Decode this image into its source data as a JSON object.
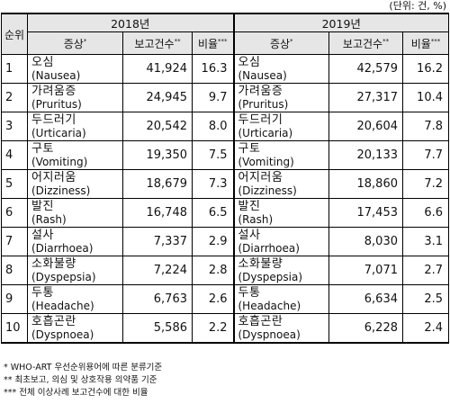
{
  "unit_note": "(단위: 건, %)",
  "headers": {
    "rank": "순위",
    "year_2018": "2018년",
    "year_2019": "2019년",
    "symptom": "증상",
    "count": "보고건수",
    "ratio": "비율",
    "mark_symptom": "*",
    "mark_count": "**",
    "mark_ratio": "***"
  },
  "rows": [
    {
      "rank": "1",
      "y2018": {
        "ko": "오심",
        "en": "(Nausea)",
        "count": "41,924",
        "ratio": "16.3"
      },
      "y2019": {
        "ko": "오심",
        "en": "(Nausea)",
        "count": "42,579",
        "ratio": "16.2"
      }
    },
    {
      "rank": "2",
      "y2018": {
        "ko": "가려움증",
        "en": "(Pruritus)",
        "count": "24,945",
        "ratio": "9.7"
      },
      "y2019": {
        "ko": "가려움증",
        "en": "(Pruritus)",
        "count": "27,317",
        "ratio": "10.4"
      }
    },
    {
      "rank": "3",
      "y2018": {
        "ko": "두드러기",
        "en": "(Urticaria)",
        "count": "20,542",
        "ratio": "8.0"
      },
      "y2019": {
        "ko": "두드러기",
        "en": "(Urticaria)",
        "count": "20,604",
        "ratio": "7.8"
      }
    },
    {
      "rank": "4",
      "y2018": {
        "ko": "구토",
        "en": "(Vomiting)",
        "count": "19,350",
        "ratio": "7.5"
      },
      "y2019": {
        "ko": "구토",
        "en": "(Vomiting)",
        "count": "20,133",
        "ratio": "7.7"
      }
    },
    {
      "rank": "5",
      "y2018": {
        "ko": "어지러움",
        "en": "(Dizziness)",
        "count": "18,679",
        "ratio": "7.3"
      },
      "y2019": {
        "ko": "어지러움",
        "en": "(Dizziness)",
        "count": "18,860",
        "ratio": "7.2"
      }
    },
    {
      "rank": "6",
      "y2018": {
        "ko": "발진",
        "en": "(Rash)",
        "count": "16,748",
        "ratio": "6.5"
      },
      "y2019": {
        "ko": "발진",
        "en": "(Rash)",
        "count": "17,453",
        "ratio": "6.6"
      }
    },
    {
      "rank": "7",
      "y2018": {
        "ko": "설사",
        "en": "(Diarrhoea)",
        "count": "7,337",
        "ratio": "2.9"
      },
      "y2019": {
        "ko": "설사",
        "en": "(Diarrhoea)",
        "count": "8,030",
        "ratio": "3.1"
      }
    },
    {
      "rank": "8",
      "y2018": {
        "ko": "소화불량",
        "en": "(Dyspepsia)",
        "count": "7,224",
        "ratio": "2.8"
      },
      "y2019": {
        "ko": "소화불량",
        "en": "(Dyspepsia)",
        "count": "7,071",
        "ratio": "2.7"
      }
    },
    {
      "rank": "9",
      "y2018": {
        "ko": "두통",
        "en": "(Headache)",
        "count": "6,763",
        "ratio": "2.6"
      },
      "y2019": {
        "ko": "두통",
        "en": "(Headache)",
        "count": "6,634",
        "ratio": "2.5"
      }
    },
    {
      "rank": "10",
      "y2018": {
        "ko": "호흡곤란",
        "en": "(Dyspnoea)",
        "count": "5,586",
        "ratio": "2.2"
      },
      "y2019": {
        "ko": "호흡곤란",
        "en": "(Dyspnoea)",
        "count": "6,228",
        "ratio": "2.4"
      }
    }
  ],
  "footnotes": [
    "* WHO-ART 우선순위용어에 따른 분류기준",
    "** 최초보고, 의심 및 상호작용 의약품 기준",
    "*** 전체 이상사례 보고건수에 대한 비율"
  ]
}
